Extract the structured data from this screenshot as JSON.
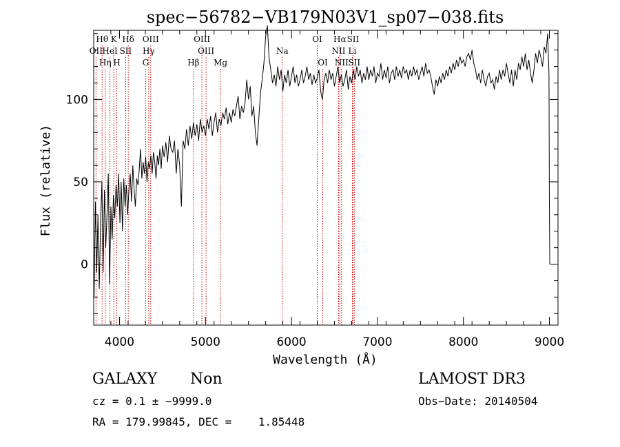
{
  "chart_data": {
    "type": "line",
    "title": "spec−56782−VB179N03V1_sp07−038.fits",
    "xlabel": "Wavelength (Å)",
    "ylabel": "Flux (relative)",
    "xlim": [
      3700,
      9100
    ],
    "ylim": [
      -37,
      142
    ],
    "xticks": [
      4000,
      5000,
      6000,
      7000,
      8000,
      9000
    ],
    "yticks": [
      0,
      50,
      100
    ],
    "series": [
      {
        "name": "flux",
        "points": [
          [
            3705,
            -20
          ],
          [
            3720,
            38
          ],
          [
            3735,
            -5
          ],
          [
            3750,
            30
          ],
          [
            3765,
            -15
          ],
          [
            3780,
            25
          ],
          [
            3795,
            50
          ],
          [
            3810,
            -5
          ],
          [
            3825,
            45
          ],
          [
            3840,
            10
          ],
          [
            3855,
            30
          ],
          [
            3870,
            55
          ],
          [
            3885,
            -12
          ],
          [
            3900,
            35
          ],
          [
            3915,
            15
          ],
          [
            3930,
            42
          ],
          [
            3945,
            28
          ],
          [
            3960,
            48
          ],
          [
            3975,
            35
          ],
          [
            3990,
            55
          ],
          [
            4005,
            25
          ],
          [
            4020,
            50
          ],
          [
            4035,
            20
          ],
          [
            4050,
            52
          ],
          [
            4065,
            35
          ],
          [
            4080,
            48
          ],
          [
            4095,
            30
          ],
          [
            4110,
            45
          ],
          [
            4125,
            55
          ],
          [
            4140,
            38
          ],
          [
            4155,
            60
          ],
          [
            4170,
            45
          ],
          [
            4185,
            35
          ],
          [
            4200,
            52
          ],
          [
            4215,
            48
          ],
          [
            4230,
            58
          ],
          [
            4245,
            70
          ],
          [
            4260,
            52
          ],
          [
            4275,
            62
          ],
          [
            4290,
            55
          ],
          [
            4305,
            65
          ],
          [
            4320,
            50
          ],
          [
            4335,
            62
          ],
          [
            4350,
            58
          ],
          [
            4365,
            66
          ],
          [
            4380,
            55
          ],
          [
            4395,
            68
          ],
          [
            4410,
            62
          ],
          [
            4425,
            52
          ],
          [
            4440,
            66
          ],
          [
            4455,
            60
          ],
          [
            4470,
            70
          ],
          [
            4485,
            58
          ],
          [
            4500,
            72
          ],
          [
            4520,
            65
          ],
          [
            4540,
            74
          ],
          [
            4560,
            62
          ],
          [
            4580,
            78
          ],
          [
            4600,
            70
          ],
          [
            4620,
            68
          ],
          [
            4640,
            75
          ],
          [
            4660,
            55
          ],
          [
            4680,
            70
          ],
          [
            4700,
            60
          ],
          [
            4720,
            35
          ],
          [
            4740,
            75
          ],
          [
            4760,
            70
          ],
          [
            4780,
            82
          ],
          [
            4800,
            72
          ],
          [
            4820,
            84
          ],
          [
            4840,
            76
          ],
          [
            4860,
            86
          ],
          [
            4880,
            78
          ],
          [
            4900,
            85
          ],
          [
            4920,
            75
          ],
          [
            4940,
            88
          ],
          [
            4960,
            80
          ],
          [
            4980,
            84
          ],
          [
            5000,
            78
          ],
          [
            5020,
            88
          ],
          [
            5040,
            82
          ],
          [
            5060,
            90
          ],
          [
            5080,
            78
          ],
          [
            5100,
            86
          ],
          [
            5120,
            92
          ],
          [
            5140,
            80
          ],
          [
            5160,
            88
          ],
          [
            5180,
            84
          ],
          [
            5200,
            92
          ],
          [
            5220,
            88
          ],
          [
            5240,
            95
          ],
          [
            5260,
            85
          ],
          [
            5280,
            92
          ],
          [
            5300,
            86
          ],
          [
            5320,
            94
          ],
          [
            5340,
            90
          ],
          [
            5360,
            96
          ],
          [
            5380,
            102
          ],
          [
            5400,
            88
          ],
          [
            5420,
            96
          ],
          [
            5440,
            92
          ],
          [
            5460,
            98
          ],
          [
            5480,
            112
          ],
          [
            5500,
            100
          ],
          [
            5520,
            108
          ],
          [
            5540,
            90
          ],
          [
            5560,
            96
          ],
          [
            5580,
            80
          ],
          [
            5600,
            72
          ],
          [
            5620,
            88
          ],
          [
            5640,
            104
          ],
          [
            5660,
            112
          ],
          [
            5680,
            122
          ],
          [
            5700,
            138
          ],
          [
            5720,
            145
          ],
          [
            5740,
            125
          ],
          [
            5760,
            118
          ],
          [
            5780,
            110
          ],
          [
            5800,
            115
          ],
          [
            5820,
            108
          ],
          [
            5840,
            120
          ],
          [
            5860,
            112
          ],
          [
            5880,
            118
          ],
          [
            5900,
            105
          ],
          [
            5920,
            115
          ],
          [
            5940,
            110
          ],
          [
            5960,
            118
          ],
          [
            5980,
            108
          ],
          [
            6000,
            114
          ],
          [
            6020,
            120
          ],
          [
            6040,
            110
          ],
          [
            6060,
            115
          ],
          [
            6080,
            108
          ],
          [
            6100,
            112
          ],
          [
            6120,
            118
          ],
          [
            6140,
            110
          ],
          [
            6160,
            114
          ],
          [
            6180,
            120
          ],
          [
            6200,
            112
          ],
          [
            6220,
            116
          ],
          [
            6240,
            109
          ],
          [
            6260,
            115
          ],
          [
            6280,
            110
          ],
          [
            6300,
            113
          ],
          [
            6320,
            118
          ],
          [
            6340,
            105
          ],
          [
            6360,
            100
          ],
          [
            6380,
            112
          ],
          [
            6400,
            116
          ],
          [
            6420,
            110
          ],
          [
            6440,
            118
          ],
          [
            6460,
            112
          ],
          [
            6480,
            116
          ],
          [
            6500,
            108
          ],
          [
            6520,
            114
          ],
          [
            6540,
            120
          ],
          [
            6560,
            110
          ],
          [
            6580,
            115
          ],
          [
            6600,
            108
          ],
          [
            6620,
            112
          ],
          [
            6640,
            118
          ],
          [
            6660,
            106
          ],
          [
            6680,
            114
          ],
          [
            6700,
            110
          ],
          [
            6720,
            118
          ],
          [
            6740,
            112
          ],
          [
            6760,
            120
          ],
          [
            6780,
            114
          ],
          [
            6800,
            118
          ],
          [
            6820,
            110
          ],
          [
            6840,
            116
          ],
          [
            6860,
            112
          ],
          [
            6880,
            120
          ],
          [
            6900,
            112
          ],
          [
            6920,
            118
          ],
          [
            6940,
            114
          ],
          [
            6960,
            120
          ],
          [
            6980,
            110
          ],
          [
            7000,
            116
          ],
          [
            7020,
            114
          ],
          [
            7040,
            122
          ],
          [
            7060,
            112
          ],
          [
            7080,
            118
          ],
          [
            7100,
            113
          ],
          [
            7120,
            120
          ],
          [
            7140,
            110
          ],
          [
            7160,
            116
          ],
          [
            7180,
            118
          ],
          [
            7200,
            112
          ],
          [
            7220,
            120
          ],
          [
            7240,
            114
          ],
          [
            7260,
            118
          ],
          [
            7280,
            113
          ],
          [
            7300,
            120
          ],
          [
            7320,
            116
          ],
          [
            7340,
            118
          ],
          [
            7360,
            112
          ],
          [
            7380,
            118
          ],
          [
            7400,
            114
          ],
          [
            7420,
            120
          ],
          [
            7440,
            115
          ],
          [
            7460,
            118
          ],
          [
            7480,
            112
          ],
          [
            7500,
            116
          ],
          [
            7520,
            120
          ],
          [
            7540,
            114
          ],
          [
            7560,
            122
          ],
          [
            7580,
            116
          ],
          [
            7600,
            118
          ],
          [
            7620,
            114
          ],
          [
            7640,
            108
          ],
          [
            7660,
            103
          ],
          [
            7680,
            112
          ],
          [
            7700,
            108
          ],
          [
            7720,
            114
          ],
          [
            7740,
            110
          ],
          [
            7760,
            116
          ],
          [
            7780,
            112
          ],
          [
            7800,
            118
          ],
          [
            7820,
            114
          ],
          [
            7840,
            120
          ],
          [
            7860,
            116
          ],
          [
            7880,
            122
          ],
          [
            7900,
            118
          ],
          [
            7920,
            124
          ],
          [
            7940,
            120
          ],
          [
            7960,
            126
          ],
          [
            7980,
            122
          ],
          [
            8000,
            124
          ],
          [
            8020,
            120
          ],
          [
            8040,
            126
          ],
          [
            8060,
            128
          ],
          [
            8080,
            124
          ],
          [
            8100,
            130
          ],
          [
            8120,
            122
          ],
          [
            8140,
            118
          ],
          [
            8160,
            112
          ],
          [
            8180,
            116
          ],
          [
            8200,
            110
          ],
          [
            8220,
            118
          ],
          [
            8240,
            112
          ],
          [
            8260,
            108
          ],
          [
            8280,
            114
          ],
          [
            8300,
            116
          ],
          [
            8320,
            110
          ],
          [
            8340,
            112
          ],
          [
            8360,
            106
          ],
          [
            8380,
            114
          ],
          [
            8400,
            110
          ],
          [
            8420,
            118
          ],
          [
            8440,
            112
          ],
          [
            8460,
            118
          ],
          [
            8480,
            114
          ],
          [
            8500,
            122
          ],
          [
            8520,
            116
          ],
          [
            8540,
            110
          ],
          [
            8560,
            118
          ],
          [
            8580,
            108
          ],
          [
            8600,
            118
          ],
          [
            8620,
            112
          ],
          [
            8640,
            122
          ],
          [
            8660,
            118
          ],
          [
            8680,
            126
          ],
          [
            8700,
            120
          ],
          [
            8720,
            128
          ],
          [
            8740,
            118
          ],
          [
            8760,
            124
          ],
          [
            8780,
            116
          ],
          [
            8800,
            110
          ],
          [
            8820,
            118
          ],
          [
            8840,
            128
          ],
          [
            8860,
            122
          ],
          [
            8880,
            130
          ],
          [
            8900,
            126
          ],
          [
            8920,
            120
          ],
          [
            8940,
            132
          ],
          [
            8960,
            128
          ],
          [
            8980,
            140
          ],
          [
            8995,
            115
          ],
          [
            9000,
            35
          ],
          [
            9005,
            0
          ]
        ]
      }
    ],
    "line_markers": [
      {
        "label": "OII",
        "wavelength": 3727,
        "row": 2
      },
      {
        "label": "Hθ",
        "wavelength": 3798,
        "row": 1
      },
      {
        "label": "Hη",
        "wavelength": 3835,
        "row": 3
      },
      {
        "label": "HeI",
        "wavelength": 3889,
        "row": 2
      },
      {
        "label": "K",
        "wavelength": 3934,
        "row": 1
      },
      {
        "label": "H",
        "wavelength": 3969,
        "row": 3
      },
      {
        "label": "Hδ",
        "wavelength": 4102,
        "row": 1
      },
      {
        "label": "SII",
        "wavelength": 4072,
        "row": 2
      },
      {
        "label": "G",
        "wavelength": 4304,
        "row": 3
      },
      {
        "label": "OIII",
        "wavelength": 4363,
        "row": 1
      },
      {
        "label": "Hγ",
        "wavelength": 4340,
        "row": 2
      },
      {
        "label": "Hβ",
        "wavelength": 4861,
        "row": 3
      },
      {
        "label": "OIII",
        "wavelength": 4959,
        "row": 1
      },
      {
        "label": "OIII",
        "wavelength": 5007,
        "row": 2
      },
      {
        "label": "Mg",
        "wavelength": 5175,
        "row": 3
      },
      {
        "label": "Na",
        "wavelength": 5894,
        "row": 2
      },
      {
        "label": "OI",
        "wavelength": 6300,
        "row": 1
      },
      {
        "label": "OI",
        "wavelength": 6364,
        "row": 3
      },
      {
        "label": "NII",
        "wavelength": 6548,
        "row": 2
      },
      {
        "label": "Hα",
        "wavelength": 6563,
        "row": 1
      },
      {
        "label": "NII",
        "wavelength": 6583,
        "row": 3
      },
      {
        "label": "SII",
        "wavelength": 6716,
        "row": 1
      },
      {
        "label": "Li",
        "wavelength": 6708,
        "row": 2
      },
      {
        "label": "SII",
        "wavelength": 6731,
        "row": 3
      }
    ]
  },
  "info": {
    "object_class": "GALAXY",
    "subclass": "Non",
    "survey": "LAMOST DR3",
    "redshift": "cz = 0.1 ± −9999.0",
    "obs_date": "Obs−Date: 20140504",
    "coords": "RA = 179.99845, DEC =    1.85448"
  },
  "colors": {
    "axis": "#000000",
    "spectrum": "#000000",
    "marker": "#cc0000"
  }
}
